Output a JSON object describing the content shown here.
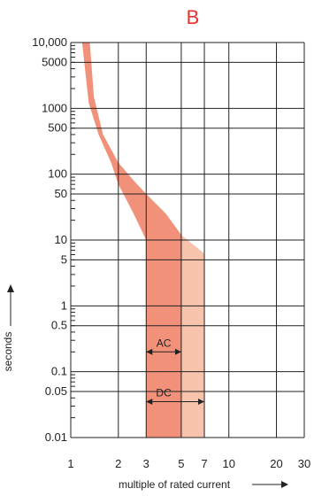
{
  "chart_data": {
    "type": "area",
    "title": "B",
    "xlabel": "multiple of rated current",
    "ylabel": "seconds",
    "x_scale": "log",
    "y_scale": "log",
    "xlim": [
      1,
      30
    ],
    "ylim": [
      0.01,
      10000
    ],
    "grid": true,
    "x_ticks": [
      {
        "value": 1,
        "label": "1"
      },
      {
        "value": 2,
        "label": "2"
      },
      {
        "value": 3,
        "label": "3"
      },
      {
        "value": 5,
        "label": "5"
      },
      {
        "value": 7,
        "label": "7"
      },
      {
        "value": 10,
        "label": "10"
      },
      {
        "value": 20,
        "label": "20"
      },
      {
        "value": 30,
        "label": "30"
      }
    ],
    "y_ticks": [
      {
        "value": 10000,
        "label": "10,000"
      },
      {
        "value": 5000,
        "label": "5000"
      },
      {
        "value": 1000,
        "label": "1000"
      },
      {
        "value": 500,
        "label": "500"
      },
      {
        "value": 100,
        "label": "100"
      },
      {
        "value": 50,
        "label": "50"
      },
      {
        "value": 10,
        "label": "10"
      },
      {
        "value": 5,
        "label": "5"
      },
      {
        "value": 1,
        "label": "1"
      },
      {
        "value": 0.5,
        "label": "0.5"
      },
      {
        "value": 0.1,
        "label": "0.1"
      },
      {
        "value": 0.05,
        "label": "0.05"
      },
      {
        "value": 0.01,
        "label": "0.01"
      }
    ],
    "series": [
      {
        "name": "AC",
        "color": "#f2917a",
        "upper": [
          [
            1.32,
            10000
          ],
          [
            1.4,
            1500
          ],
          [
            1.6,
            400
          ],
          [
            2.0,
            150
          ],
          [
            2.5,
            80
          ],
          [
            3.0,
            50
          ],
          [
            4.0,
            25
          ],
          [
            5.0,
            12
          ],
          [
            5.6,
            10
          ],
          [
            7.0,
            6.2
          ],
          [
            7.0,
            0.01
          ]
        ],
        "lower": [
          [
            1.18,
            10000
          ],
          [
            1.3,
            1200
          ],
          [
            1.5,
            400
          ],
          [
            1.8,
            150
          ],
          [
            2.0,
            70
          ],
          [
            2.5,
            25
          ],
          [
            3.0,
            10
          ],
          [
            3.0,
            0.01
          ]
        ]
      },
      {
        "name": "DC",
        "color": "#f8c3ad",
        "extends_to": 7
      }
    ],
    "annotations": [
      {
        "text": "AC",
        "from": 3,
        "to": 5,
        "y": 0.2
      },
      {
        "text": "DC",
        "from": 3,
        "to": 7,
        "y": 0.035
      }
    ],
    "colors": {
      "ac_band": "#f2917a",
      "dc_band": "#f8c3ad",
      "title": "#e8312b",
      "grid": "#222222"
    }
  }
}
